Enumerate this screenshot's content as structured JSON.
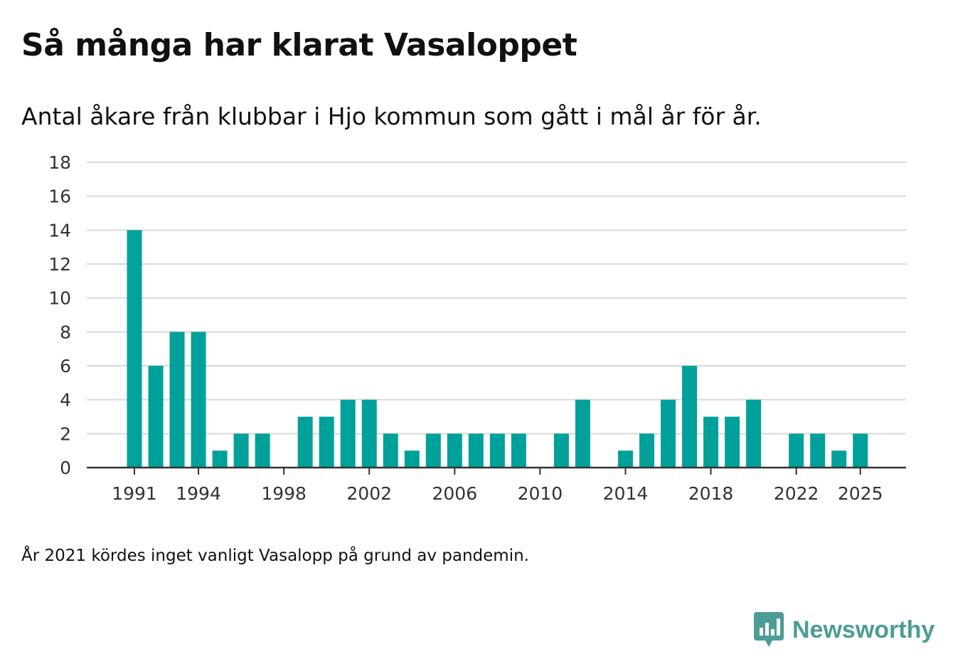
{
  "chart_data": {
    "type": "bar",
    "title": "Så många har klarat Vasaloppet",
    "subtitle": "Antal åkare från klubbar i Hjo kommun som gått i mål år för år.",
    "xlabel": "",
    "ylabel": "",
    "ylim": [
      0,
      18
    ],
    "yticks": [
      0,
      2,
      4,
      6,
      8,
      10,
      12,
      14,
      16,
      18
    ],
    "xticks": [
      1991,
      1994,
      1998,
      2002,
      2006,
      2010,
      2014,
      2018,
      2022,
      2025
    ],
    "categories": [
      1991,
      1992,
      1993,
      1994,
      1995,
      1996,
      1997,
      1998,
      1999,
      2000,
      2001,
      2002,
      2003,
      2004,
      2005,
      2006,
      2007,
      2008,
      2009,
      2010,
      2011,
      2012,
      2013,
      2014,
      2015,
      2016,
      2017,
      2018,
      2019,
      2020,
      2021,
      2022,
      2023,
      2024,
      2025
    ],
    "values": [
      14,
      6,
      8,
      8,
      1,
      2,
      2,
      0,
      3,
      3,
      4,
      4,
      2,
      1,
      2,
      2,
      2,
      2,
      2,
      0,
      2,
      4,
      0,
      1,
      2,
      4,
      6,
      3,
      3,
      4,
      0,
      2,
      2,
      1,
      2
    ],
    "grid": true,
    "color": "#00a19a",
    "footnote": "År 2021 kördes inget vanligt Vasalopp på grund av pandemin."
  },
  "brand": {
    "name": "Newsworthy",
    "icon": "newsworthy-logo-icon",
    "color": "#4c9c96"
  }
}
